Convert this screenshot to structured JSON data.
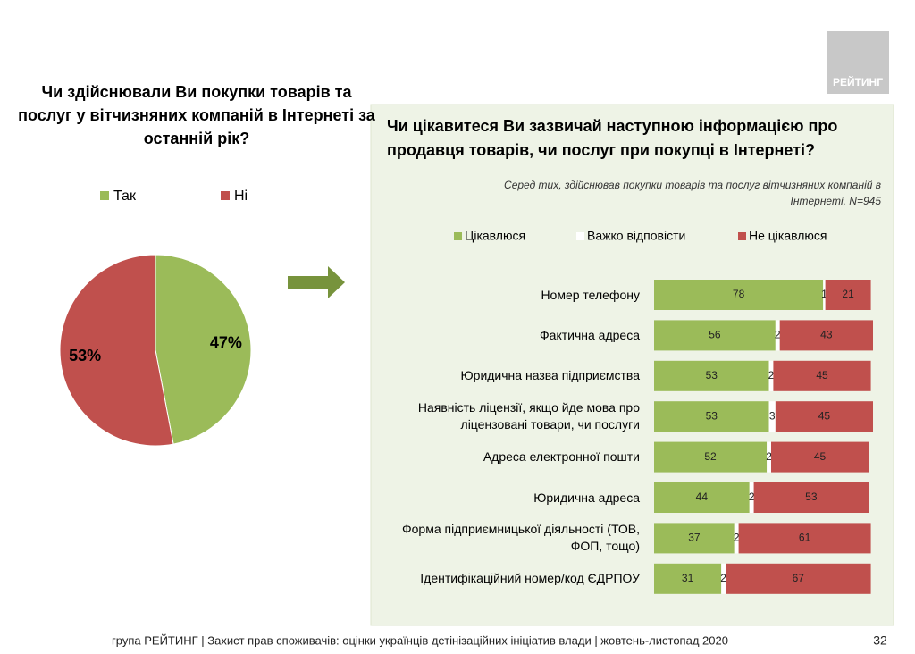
{
  "logo": "РЕЙТИНГ",
  "footer": "група РЕЙТИНГ  | Захист прав споживачів: оцінки українців детінізаційних ініціатив влади  | жовтень-листопад 2020",
  "page_number": "32",
  "chart_data": [
    {
      "type": "pie",
      "title": "Чи здійснювали Ви покупки товарів та послуг у вітчизняних компаній в Інтернеті за останній рік?",
      "categories": [
        "Так",
        "Ні"
      ],
      "values": [
        47,
        53
      ],
      "value_labels": [
        "47%",
        "53%"
      ],
      "colors": [
        "#9bbb59",
        "#c0504d"
      ]
    },
    {
      "type": "stacked-bar-horizontal",
      "title": "Чи цікавитеся Ви зазвичай наступною інформацією про продавця товарів, чи послуг при покупці в Інтернеті?",
      "subtitle": "Серед тих, здійснював покупки товарів та послуг вітчизняних компаній в Інтернеті, N=945",
      "categories": [
        "Номер телефону",
        "Фактична адреса",
        "Юридична назва підприємства",
        "Наявність ліцензії, якщо йде мова про ліцензовані товари, чи послуги",
        "Адреса електронної пошти",
        "Юридична адреса",
        "Форма підприємницької діяльності (ТОВ, ФОП, тощо)",
        "Ідентифікаційний номер/код ЄДРПОУ"
      ],
      "series": [
        {
          "name": "Цікавлюся",
          "color": "#9bbb59",
          "values": [
            78,
            56,
            53,
            53,
            52,
            44,
            37,
            31
          ]
        },
        {
          "name": "Важко відповісти",
          "color": "#ffffff",
          "values": [
            1,
            2,
            2,
            3,
            2,
            2,
            2,
            2
          ]
        },
        {
          "name": "Не цікавлюся",
          "color": "#c0504d",
          "values": [
            21,
            43,
            45,
            45,
            45,
            53,
            61,
            67
          ]
        }
      ]
    }
  ]
}
